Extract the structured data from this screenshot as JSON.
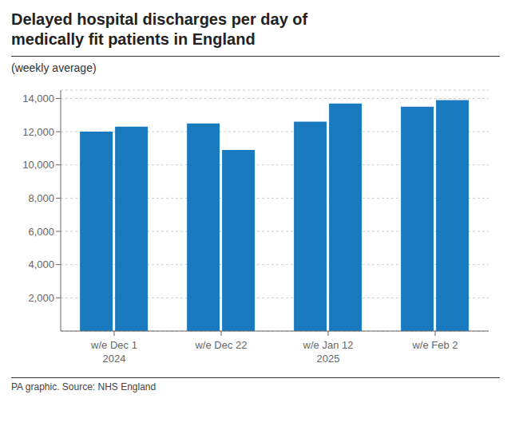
{
  "chart_data": {
    "type": "bar",
    "title": "Delayed hospital discharges per day of\nmedically fit patients in England",
    "subtitle": "(weekly average)",
    "source": "PA graphic. Source: NHS England",
    "categories": [
      "w/e Dec 1\n2024",
      "w/e Dec 22",
      "w/e Jan 12\n2025",
      "w/e Feb 2"
    ],
    "series": [
      {
        "color": "#1a7abf",
        "values": [
          12000,
          12500,
          12600,
          13500
        ]
      },
      {
        "color": "#1a7abf",
        "values": [
          12300,
          10900,
          13700,
          13900
        ]
      }
    ],
    "ylim": [
      0,
      14500
    ],
    "yticks": [
      {
        "value": 2000,
        "label": "2,000"
      },
      {
        "value": 4000,
        "label": "4,000"
      },
      {
        "value": 6000,
        "label": "6,000"
      },
      {
        "value": 8000,
        "label": "8,000"
      },
      {
        "value": 10000,
        "label": "10,000"
      },
      {
        "value": 12000,
        "label": "12,000"
      },
      {
        "value": 14000,
        "label": "14,000"
      }
    ],
    "grid": true
  }
}
